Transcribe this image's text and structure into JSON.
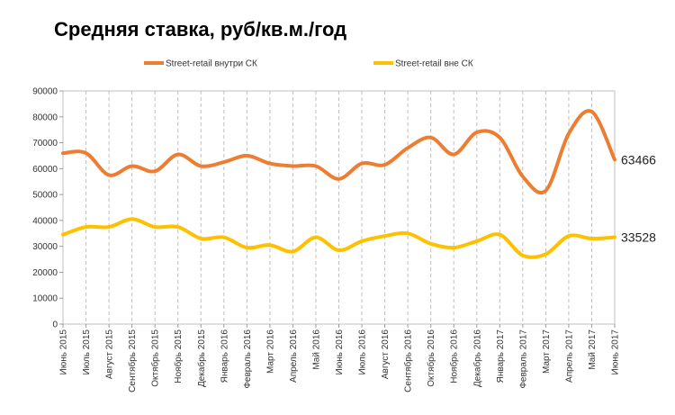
{
  "chart_data": {
    "type": "line",
    "title": "Средняя ставка, руб/кв.м./год",
    "categories": [
      "Июнь 2015",
      "Июль 2015",
      "Август 2015",
      "Сентябрь 2015",
      "Октябрь 2015",
      "Ноябрь 2015",
      "Декабрь 2015",
      "Январь 2016",
      "Февраль 2016",
      "Март 2016",
      "Апрель 2016",
      "Май 2016",
      "Июнь 2016",
      "Июль 2016",
      "Август 2016",
      "Сентябрь 2016",
      "Октябрь 2016",
      "Ноябрь 2016",
      "Декабрь 2016",
      "Январь 2017",
      "Февраль 2017",
      "Март 2017",
      "Апрель 2017",
      "Май 2017",
      "Июнь 2017"
    ],
    "series": [
      {
        "name": "Street-retail внутри СК",
        "color": "#ED7D31",
        "values": [
          66000,
          66000,
          57500,
          61000,
          59000,
          65500,
          61000,
          62500,
          65000,
          62000,
          61000,
          61000,
          56000,
          62000,
          61500,
          68000,
          72000,
          65500,
          74000,
          72000,
          57000,
          51500,
          73500,
          82000,
          63466
        ],
        "end_label": "63466"
      },
      {
        "name": "Street-retail  вне СК",
        "color": "#FFC000",
        "values": [
          34500,
          37500,
          37500,
          40500,
          37500,
          37500,
          33000,
          33500,
          29500,
          30500,
          28000,
          33500,
          28500,
          32000,
          34000,
          35000,
          31000,
          29500,
          32000,
          34500,
          26500,
          27000,
          34000,
          33000,
          33528
        ],
        "end_label": "33528"
      }
    ],
    "ylim": [
      0,
      90000
    ],
    "y_ticks": [
      "0",
      "10000",
      "20000",
      "30000",
      "40000",
      "50000",
      "60000",
      "70000",
      "80000",
      "90000"
    ],
    "grid": "vertical-dashed",
    "legend_position": "top",
    "xlabel": "",
    "ylabel": ""
  }
}
